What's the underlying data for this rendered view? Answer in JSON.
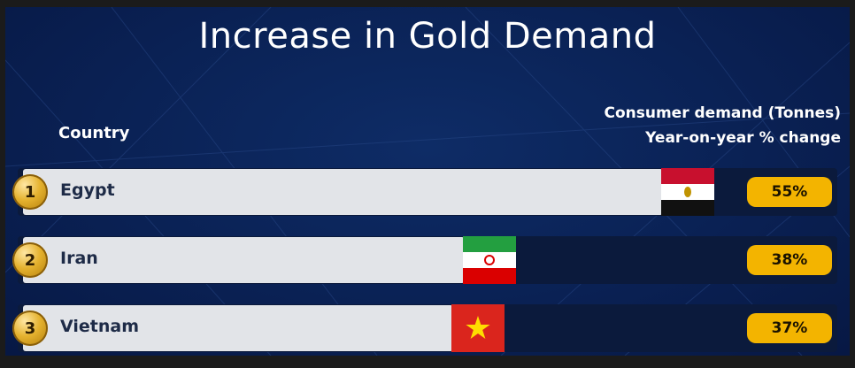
{
  "colors": {
    "background": "#0a2154",
    "bar_fill": "#e2e4e8",
    "track": "#0b1a3c",
    "badge": "#f3b400",
    "rank_gold": "#e5b22f"
  },
  "header": {
    "country": "Country",
    "value_line1": "Consumer demand (Tonnes)",
    "value_line2": "Year-on-year % change"
  },
  "chart_data": {
    "type": "bar",
    "title": "Increase in Gold Demand",
    "orientation": "horizontal",
    "categories": [
      "Egypt",
      "Iran",
      "Vietnam"
    ],
    "ranks": [
      "1",
      "2",
      "3"
    ],
    "values": [
      55,
      38,
      37
    ],
    "value_labels": [
      "55%",
      "38%",
      "37%"
    ],
    "flags": [
      "egypt-flag",
      "iran-flag",
      "vietnam-flag"
    ],
    "unit": "%",
    "xlim": [
      0,
      70
    ],
    "grid": false,
    "legend": "none"
  }
}
